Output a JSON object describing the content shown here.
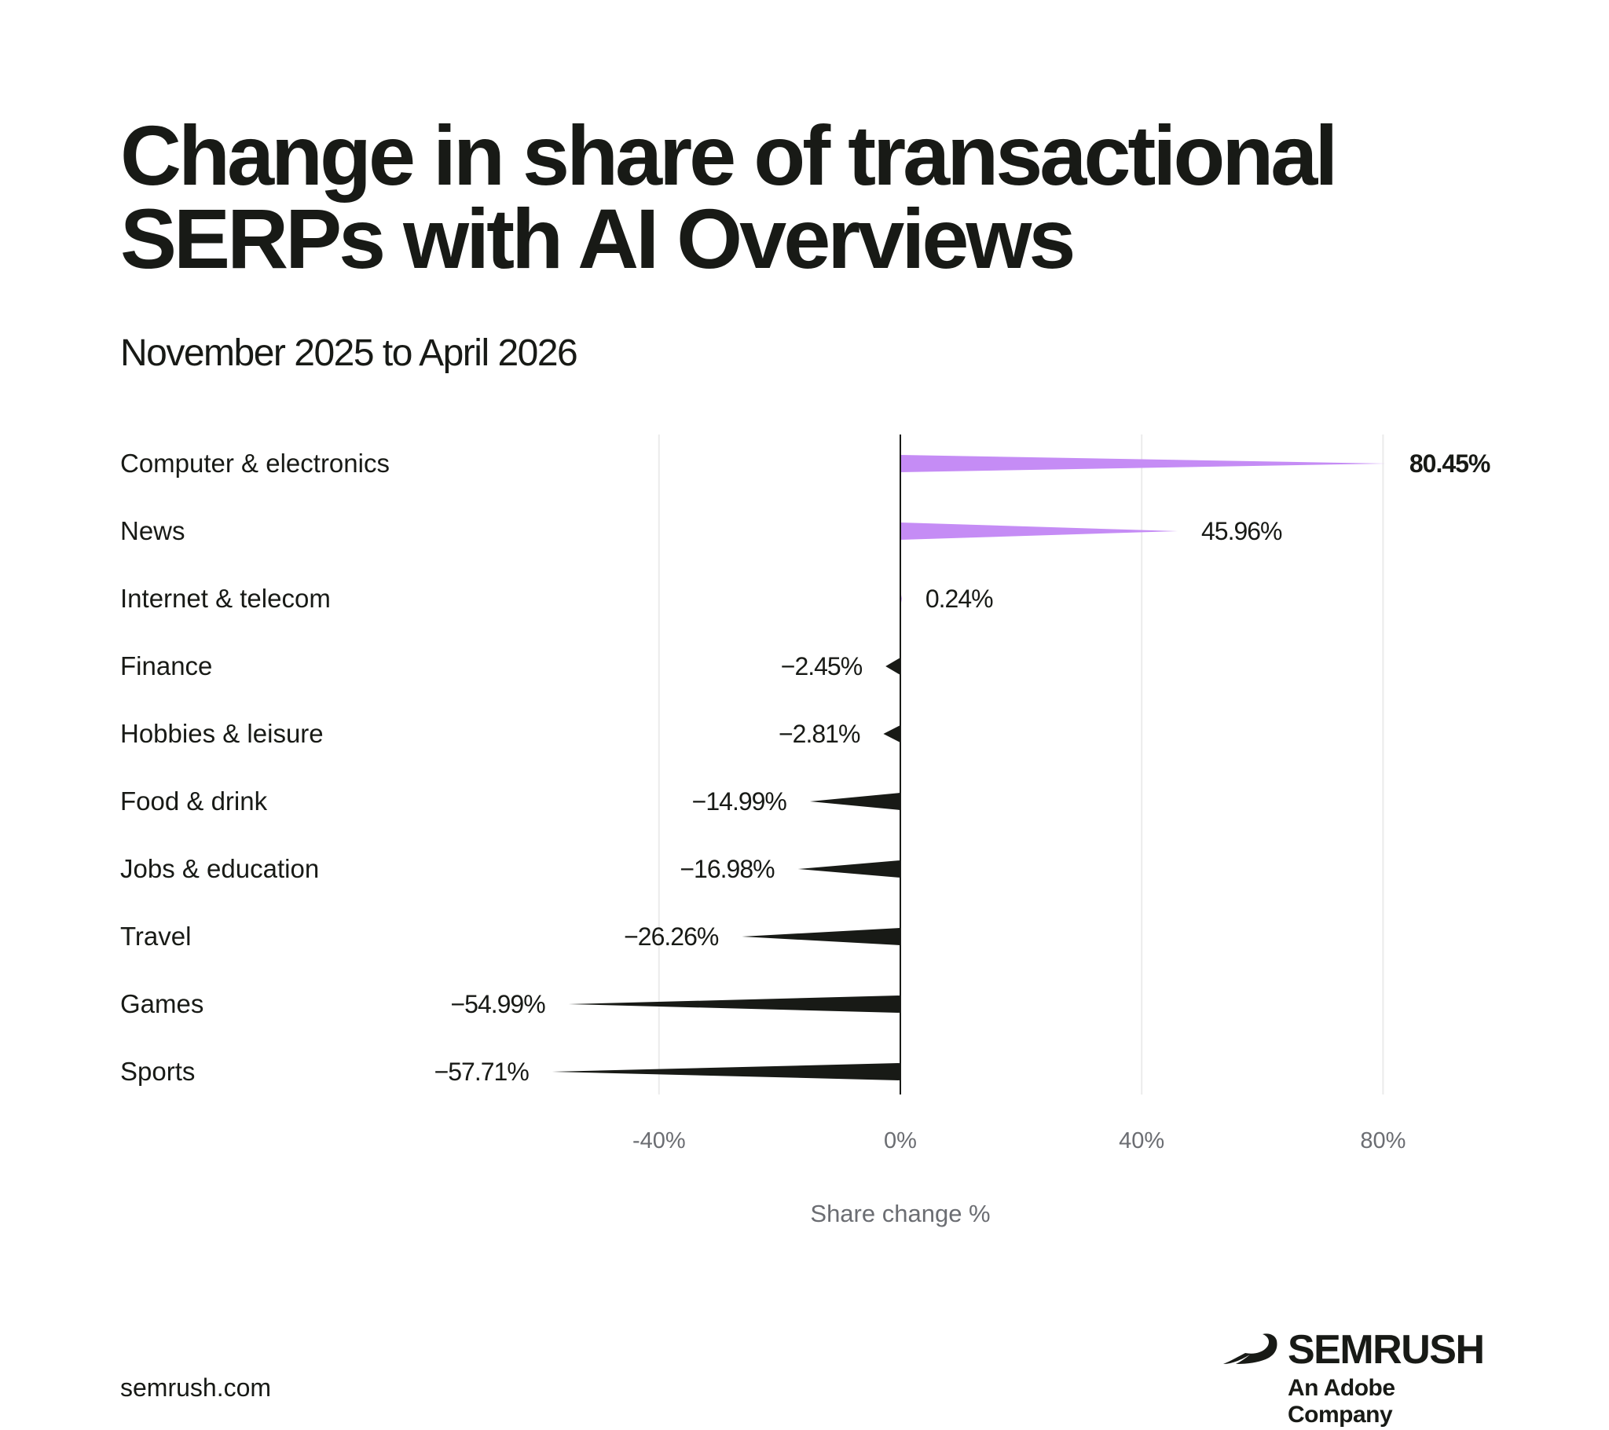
{
  "header": {
    "title": "Change in share of transactional SERPs with AI Overviews",
    "subtitle": "November 2025 to April 2026"
  },
  "chart_data": {
    "type": "bar",
    "orientation": "horizontal",
    "categories": [
      "Computer & electronics",
      "News",
      "Internet & telecom",
      "Finance",
      "Hobbies & leisure",
      "Food & drink",
      "Jobs & education",
      "Travel",
      "Games",
      "Sports"
    ],
    "values": [
      80.45,
      45.96,
      0.24,
      -2.45,
      -2.81,
      -14.99,
      -16.98,
      -26.26,
      -54.99,
      -57.71
    ],
    "value_labels": [
      "80.45%",
      "45.96%",
      "0.24%",
      "−2.45%",
      "−2.81%",
      "−14.99%",
      "−16.98%",
      "−26.26%",
      "−54.99%",
      "−57.71%"
    ],
    "xlim": [
      -40,
      80
    ],
    "x_ticks": [
      -40,
      0,
      40,
      80
    ],
    "x_tick_labels": [
      "-40%",
      "0%",
      "40%",
      "80%"
    ],
    "xlabel": "Share change %",
    "grid": true,
    "colors": {
      "positive": "#c58cf5",
      "negative": "#181a16",
      "zero_line": "#181a16",
      "grid": "#ebebeb"
    }
  },
  "footer": {
    "url": "semrush.com",
    "brand_name": "SEMRUSH",
    "brand_tagline": "An Adobe Company",
    "brand_icon": "semrush-fireball-icon"
  }
}
